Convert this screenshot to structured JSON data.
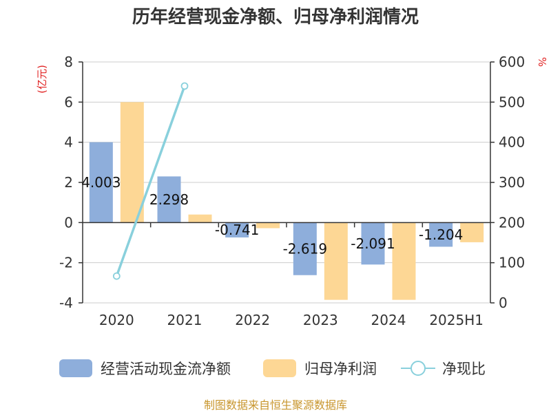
{
  "chart_data": {
    "type": "bar",
    "title": "历年经营现金净额、归母净利润情况",
    "categories": [
      "2020",
      "2021",
      "2022",
      "2023",
      "2024",
      "2025H1"
    ],
    "y_left": {
      "unit": "(亿元)",
      "ylim": [
        -4,
        8
      ],
      "ticks": [
        -4,
        -2,
        0,
        2,
        4,
        6,
        8
      ]
    },
    "y_right": {
      "unit": "%",
      "ylim": [
        0,
        600
      ],
      "ticks": [
        0,
        100,
        200,
        300,
        400,
        500,
        600
      ]
    },
    "series": [
      {
        "name": "经营活动现金流净额",
        "kind": "bar",
        "axis": "left",
        "color": "#8eaedb",
        "values": [
          4.003,
          2.298,
          -0.741,
          -2.619,
          -2.091,
          -1.204
        ],
        "labels": [
          "4.003",
          "2.298",
          "-0.741",
          "-2.619",
          "-2.091",
          "-1.204"
        ]
      },
      {
        "name": "归母净利润",
        "kind": "bar",
        "axis": "left",
        "color": "#fdd795",
        "values": [
          6.0,
          0.4,
          -0.28,
          -3.85,
          -3.85,
          -0.98
        ]
      },
      {
        "name": "净现比",
        "kind": "line",
        "axis": "right",
        "color": "#89d0dc",
        "values": [
          66.7,
          540,
          null,
          null,
          null,
          null
        ]
      }
    ],
    "legend_position": "bottom",
    "grid": true,
    "source": "制图数据来自恒生聚源数据库"
  }
}
